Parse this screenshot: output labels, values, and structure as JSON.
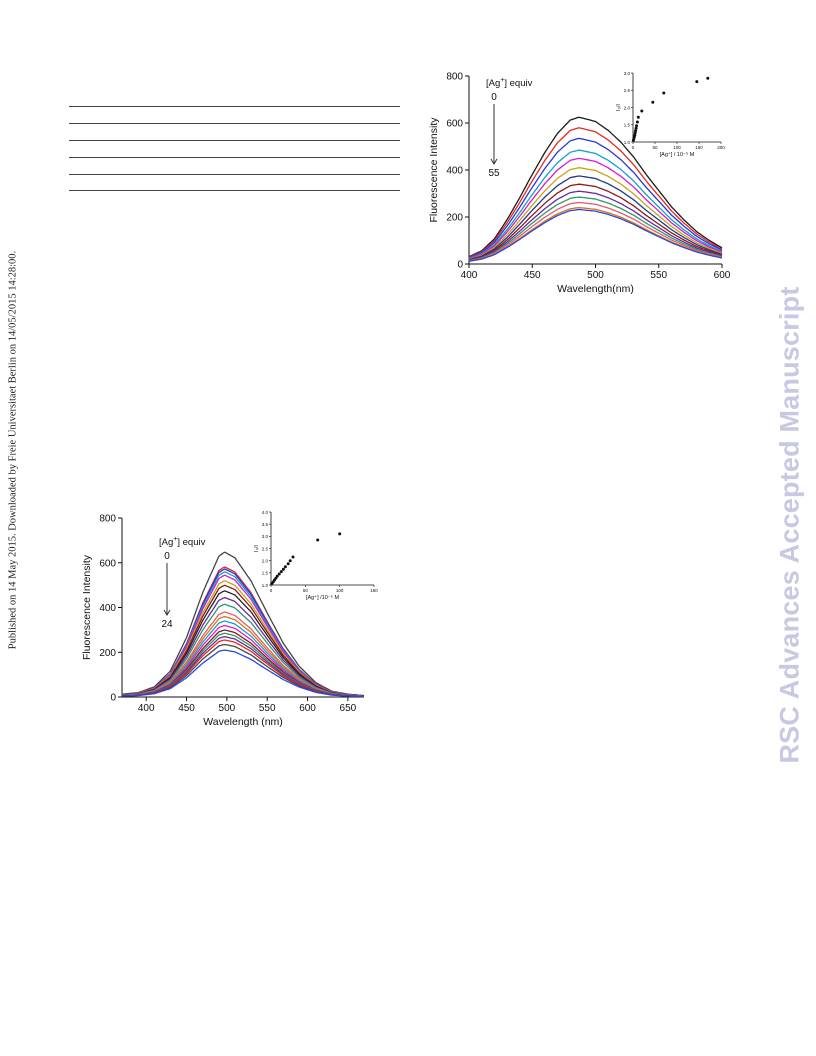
{
  "page": {
    "side_note": "Published on 14 May 2015. Downloaded by Freie Universitaet Berlin on 14/05/2015 14:28:00.",
    "watermark": "RSC Advances Accepted Manuscript"
  },
  "chart_data": [
    {
      "type": "line",
      "xlabel": "Wavelength(nm)",
      "ylabel": "Fluorescence Intensity",
      "xlim": [
        400,
        600
      ],
      "ylim": [
        0,
        800
      ],
      "x_ticks": [
        400,
        450,
        500,
        550,
        600
      ],
      "y_ticks": [
        0,
        200,
        400,
        600,
        800
      ],
      "annotation": {
        "label": "[Ag",
        "sup": "+",
        "suffix": "] equiv",
        "start": "0",
        "end": "55"
      },
      "curves": {
        "peak_x": 487,
        "x": [
          400,
          410,
          420,
          430,
          440,
          450,
          460,
          470,
          480,
          487,
          500,
          510,
          520,
          530,
          540,
          550,
          560,
          570,
          580,
          590,
          600
        ],
        "profile": [
          0.05,
          0.09,
          0.17,
          0.3,
          0.45,
          0.61,
          0.76,
          0.89,
          0.98,
          1.0,
          0.97,
          0.91,
          0.83,
          0.73,
          0.61,
          0.5,
          0.39,
          0.3,
          0.22,
          0.16,
          0.11
        ],
        "peaks": [
          625,
          580,
          535,
          485,
          450,
          410,
          375,
          340,
          310,
          285,
          262,
          240,
          232
        ],
        "colors": [
          "#1a1a1a",
          "#e8261f",
          "#2438d8",
          "#11a0c9",
          "#d61bd0",
          "#c7a511",
          "#223a8a",
          "#8a1a1a",
          "#6b2a9c",
          "#2a9a6a",
          "#e85a6a",
          "#d8751a",
          "#2a48e0"
        ]
      },
      "inset": {
        "type": "scatter",
        "xlabel": "[Ag⁺] / 10⁻⁵ M",
        "ylabel": "I₀/I",
        "xlim": [
          0,
          200
        ],
        "ylim": [
          1.0,
          3.0
        ],
        "x_ticks": [
          0,
          50,
          100,
          150,
          200
        ],
        "y_ticks": [
          1.0,
          1.5,
          2.0,
          2.5,
          3.0
        ],
        "x": [
          1,
          2,
          3,
          4,
          5,
          6,
          7,
          8,
          10,
          12,
          20,
          45,
          70,
          145,
          170
        ],
        "y": [
          1.05,
          1.1,
          1.15,
          1.2,
          1.27,
          1.33,
          1.4,
          1.47,
          1.58,
          1.72,
          1.9,
          2.15,
          2.42,
          2.75,
          2.85
        ]
      }
    },
    {
      "type": "line",
      "xlabel": "Wavelength (nm)",
      "ylabel": "Fluorescence Intensity",
      "xlim": [
        370,
        670
      ],
      "ylim": [
        0,
        800
      ],
      "x_ticks": [
        400,
        450,
        500,
        550,
        600,
        650
      ],
      "y_ticks": [
        0,
        200,
        400,
        600,
        800
      ],
      "annotation": {
        "label": "[Ag",
        "sup": "+",
        "suffix": "] equiv",
        "start": "0",
        "end": "24"
      },
      "curves": {
        "peak_x": 497,
        "x": [
          370,
          390,
          410,
          430,
          450,
          470,
          490,
          497,
          510,
          530,
          550,
          570,
          590,
          610,
          630,
          650,
          670
        ],
        "profile": [
          0.02,
          0.03,
          0.07,
          0.18,
          0.41,
          0.72,
          0.97,
          1.0,
          0.96,
          0.8,
          0.58,
          0.37,
          0.21,
          0.1,
          0.04,
          0.02,
          0.01
        ],
        "peaks": [
          648,
          582,
          573,
          560,
          545,
          520,
          500,
          475,
          445,
          415,
          380,
          360,
          340,
          320,
          300,
          285,
          270,
          255,
          235,
          210
        ],
        "colors": [
          "#444444",
          "#e8261f",
          "#2438d8",
          "#11a0c9",
          "#d61bd0",
          "#c7a511",
          "#8a1a1a",
          "#222222",
          "#6b2a9c",
          "#2a9a6a",
          "#e85a6a",
          "#d8751a",
          "#11a0c9",
          "#d61bd0",
          "#8a1a1a",
          "#2a9a6a",
          "#6b2a9c",
          "#e8261f",
          "#444444",
          "#2a48e0"
        ]
      },
      "inset": {
        "type": "scatter",
        "xlabel": "[Ag⁺] /10⁻⁵ M",
        "ylabel": "I₀/I",
        "xlim": [
          0,
          150
        ],
        "ylim": [
          1.0,
          4.0
        ],
        "x_ticks": [
          0,
          50,
          100,
          150
        ],
        "y_ticks": [
          1.0,
          1.5,
          2.0,
          2.5,
          3.0,
          3.5,
          4.0
        ],
        "x": [
          1,
          3,
          5,
          7,
          9,
          12,
          15,
          18,
          21,
          25,
          28,
          32,
          68,
          100
        ],
        "y": [
          1.05,
          1.12,
          1.2,
          1.28,
          1.36,
          1.45,
          1.55,
          1.65,
          1.75,
          1.87,
          2.0,
          2.15,
          2.85,
          3.1
        ]
      }
    }
  ]
}
